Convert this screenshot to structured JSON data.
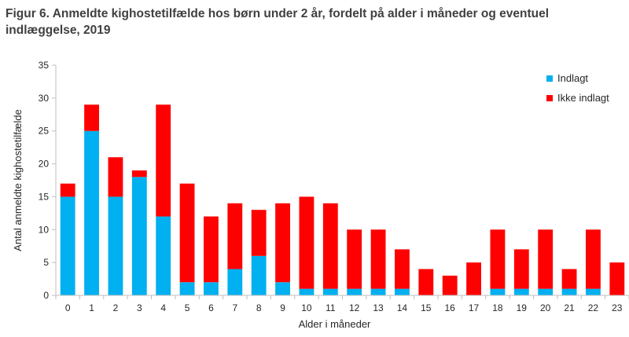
{
  "chart_data": {
    "type": "bar",
    "stacked": true,
    "title": "Figur 6. Anmeldte kighostetilfælde  hos børn under 2 år, fordelt på alder i måneder og eventuel indlæggelse, 2019",
    "xlabel": "Alder i måneder",
    "ylabel": "Antal anmeldte kighostetilfælde",
    "ylim": [
      0,
      35
    ],
    "yticks": [
      0,
      5,
      10,
      15,
      20,
      25,
      30,
      35
    ],
    "grid": false,
    "legend_position": "top-right",
    "categories": [
      "0",
      "1",
      "2",
      "3",
      "4",
      "5",
      "6",
      "7",
      "8",
      "9",
      "10",
      "11",
      "12",
      "13",
      "14",
      "15",
      "16",
      "17",
      "18",
      "19",
      "20",
      "21",
      "22",
      "23"
    ],
    "series": [
      {
        "name": "Indlagt",
        "color": "#00b0f0",
        "values": [
          15,
          25,
          15,
          18,
          12,
          2,
          2,
          4,
          6,
          2,
          1,
          1,
          1,
          1,
          1,
          0,
          0,
          0,
          1,
          1,
          1,
          1,
          1,
          0
        ]
      },
      {
        "name": "Ikke indlagt",
        "color": "#ff0000",
        "values": [
          2,
          4,
          6,
          1,
          17,
          15,
          10,
          10,
          7,
          12,
          14,
          13,
          9,
          9,
          6,
          4,
          3,
          5,
          9,
          6,
          9,
          3,
          9,
          5
        ]
      }
    ]
  }
}
